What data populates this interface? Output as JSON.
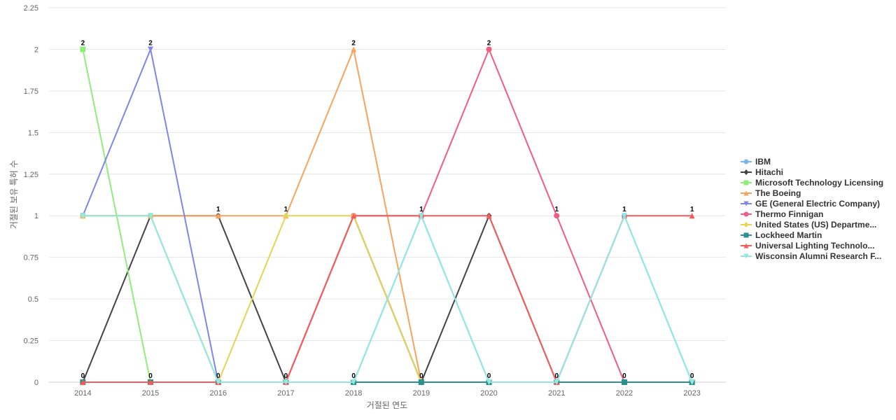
{
  "chart_data": {
    "type": "line",
    "title": "",
    "xlabel": "거절된 연도",
    "ylabel": "거절된 보유 특허 수",
    "x": [
      "2014",
      "2015",
      "2016",
      "2017",
      "2018",
      "2019",
      "2020",
      "2021",
      "2022",
      "2023"
    ],
    "ylim": [
      0,
      2.25
    ],
    "yticks": [
      "0",
      "0.25",
      "0.5",
      "0.75",
      "1",
      "1.25",
      "1.5",
      "1.75",
      "2",
      "2.25"
    ],
    "grid": true,
    "legend_position": "right",
    "top_labels": [
      "2",
      "2",
      "1",
      "1",
      "2",
      "1",
      "2",
      "1",
      "1",
      "1"
    ],
    "bottom_labels": [
      "0",
      "0",
      "0",
      "0",
      "0",
      "0",
      "0",
      "0",
      "0",
      "0"
    ],
    "series": [
      {
        "name": "IBM",
        "color": "#7cb5ec",
        "marker": "circle",
        "values": [
          1,
          1,
          0,
          0,
          0,
          1,
          0,
          0,
          1,
          0
        ]
      },
      {
        "name": "Hitachi",
        "color": "#434348",
        "marker": "diamond",
        "values": [
          0,
          1,
          1,
          0,
          1,
          0,
          1,
          0,
          0,
          0
        ]
      },
      {
        "name": "Microsoft Technology Licensing",
        "color": "#90ed7d",
        "marker": "square",
        "values": [
          2,
          0,
          0,
          0,
          0,
          0,
          0,
          0,
          0,
          0
        ]
      },
      {
        "name": "The Boeing",
        "color": "#f7a35c",
        "marker": "triangle",
        "values": [
          1,
          1,
          1,
          1,
          2,
          0,
          0,
          0,
          0,
          0
        ]
      },
      {
        "name": "GE (General Electric Company)",
        "color": "#8085e9",
        "marker": "triangle-down",
        "values": [
          1,
          2,
          0,
          0,
          0,
          0,
          0,
          0,
          0,
          0
        ]
      },
      {
        "name": "Thermo Finnigan",
        "color": "#f15c80",
        "marker": "circle",
        "values": [
          0,
          0,
          0,
          0,
          1,
          1,
          2,
          1,
          0,
          0
        ]
      },
      {
        "name": "United States (US) Departme...",
        "color": "#e4d354",
        "marker": "diamond",
        "values": [
          1,
          1,
          0,
          1,
          1,
          0,
          0,
          0,
          0,
          0
        ]
      },
      {
        "name": "Lockheed Martin",
        "color": "#2b908f",
        "marker": "square",
        "values": [
          0,
          0,
          0,
          0,
          0,
          0,
          0,
          0,
          0,
          0
        ]
      },
      {
        "name": "Universal Lighting Technolo...",
        "color": "#f45b5b",
        "marker": "triangle",
        "values": [
          0,
          0,
          0,
          0,
          1,
          1,
          1,
          0,
          1,
          1
        ]
      },
      {
        "name": "Wisconsin Alumni Research F...",
        "color": "#91e8e1",
        "marker": "triangle-down",
        "values": [
          1,
          1,
          0,
          0,
          0,
          1,
          0,
          0,
          1,
          0
        ]
      }
    ]
  }
}
